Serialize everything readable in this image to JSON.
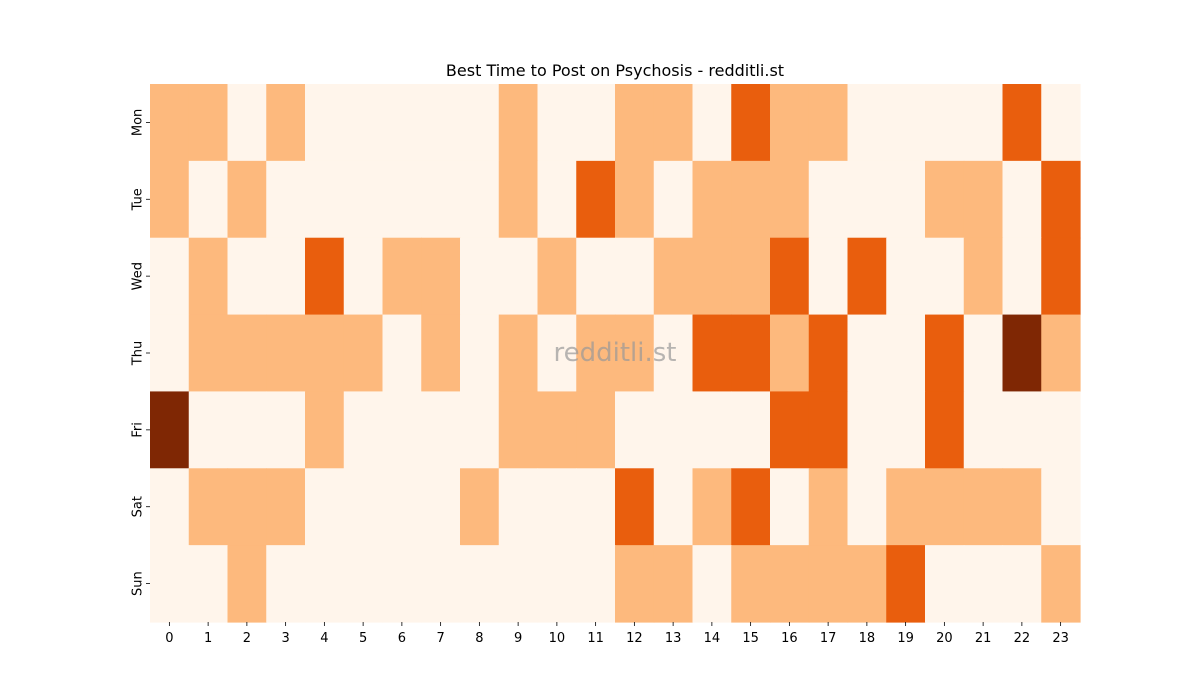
{
  "chart_data": {
    "type": "heatmap",
    "title": "Best Time to Post on Psychosis - redditli.st",
    "xlabel": "",
    "ylabel": "",
    "x_categories": [
      "0",
      "1",
      "2",
      "3",
      "4",
      "5",
      "6",
      "7",
      "8",
      "9",
      "10",
      "11",
      "12",
      "13",
      "14",
      "15",
      "16",
      "17",
      "18",
      "19",
      "20",
      "21",
      "22",
      "23"
    ],
    "y_categories": [
      "Mon",
      "Tue",
      "Wed",
      "Thu",
      "Fri",
      "Sat",
      "Sun"
    ],
    "values": [
      [
        1,
        1,
        0,
        1,
        0,
        0,
        0,
        0,
        0,
        1,
        0,
        0,
        1,
        1,
        0,
        2,
        1,
        1,
        0,
        0,
        0,
        0,
        2,
        0
      ],
      [
        1,
        0,
        1,
        0,
        0,
        0,
        0,
        0,
        0,
        1,
        0,
        2,
        1,
        0,
        1,
        1,
        1,
        0,
        0,
        0,
        1,
        1,
        0,
        2
      ],
      [
        0,
        1,
        0,
        0,
        2,
        0,
        1,
        1,
        0,
        0,
        1,
        0,
        0,
        1,
        1,
        1,
        2,
        0,
        2,
        0,
        0,
        1,
        0,
        2
      ],
      [
        0,
        1,
        1,
        1,
        1,
        1,
        0,
        1,
        0,
        1,
        0,
        1,
        1,
        0,
        2,
        2,
        1,
        2,
        0,
        0,
        2,
        0,
        3,
        1
      ],
      [
        3,
        0,
        0,
        0,
        1,
        0,
        0,
        0,
        0,
        1,
        1,
        1,
        0,
        0,
        0,
        0,
        2,
        2,
        0,
        0,
        2,
        0,
        0,
        0
      ],
      [
        0,
        1,
        1,
        1,
        0,
        0,
        0,
        0,
        1,
        0,
        0,
        0,
        2,
        0,
        1,
        2,
        0,
        1,
        0,
        1,
        1,
        1,
        1,
        0
      ],
      [
        0,
        0,
        1,
        0,
        0,
        0,
        0,
        0,
        0,
        0,
        0,
        0,
        1,
        1,
        0,
        1,
        1,
        1,
        1,
        2,
        0,
        0,
        0,
        1
      ]
    ],
    "colorscale": [
      "#fff5eb",
      "#fdb97d",
      "#e95e0d",
      "#7f2704"
    ],
    "grid": false,
    "legend": "none",
    "watermark": "redditli.st"
  }
}
